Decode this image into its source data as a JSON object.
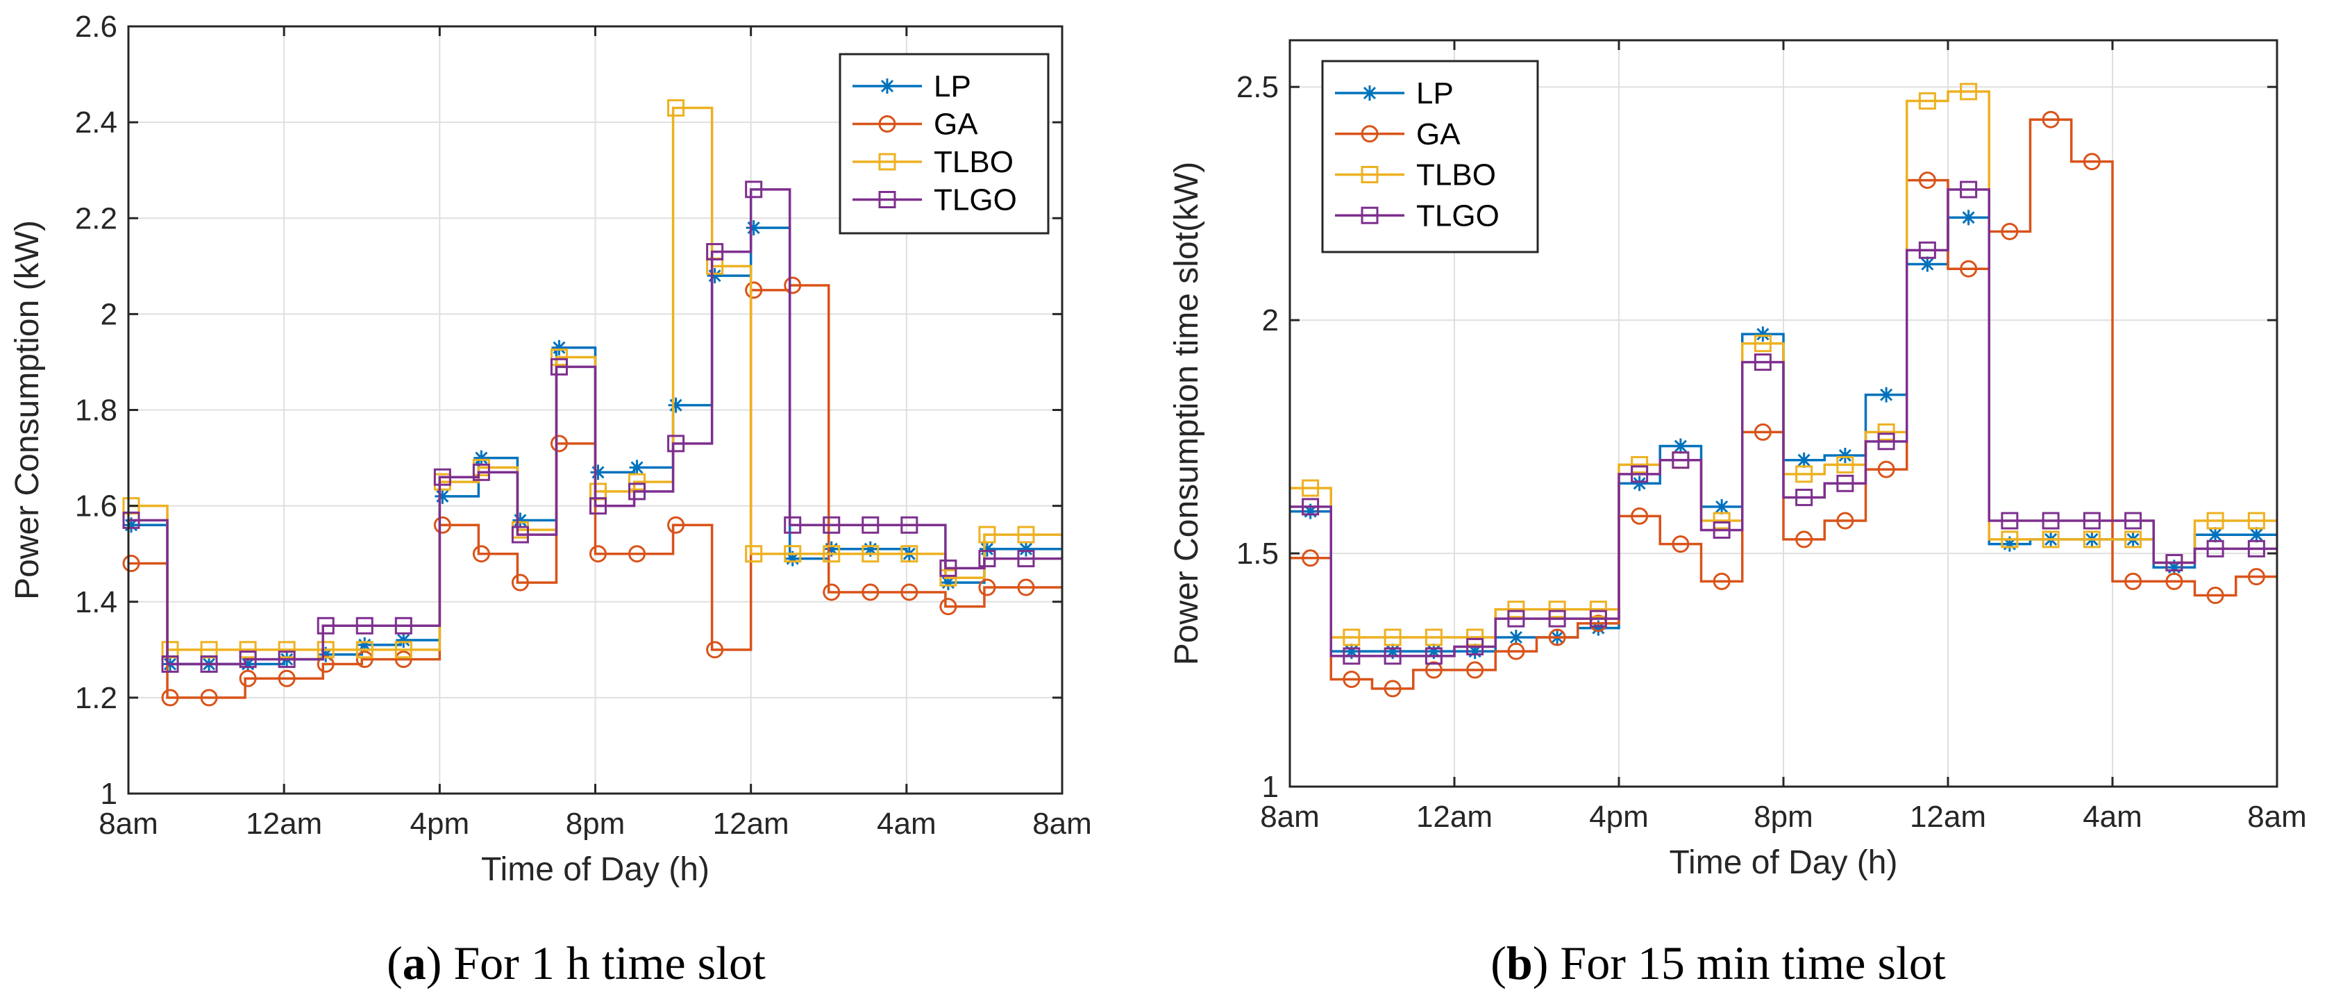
{
  "chart_data": [
    {
      "type": "line",
      "id": "a",
      "step": true,
      "caption_label": "a",
      "caption_text": "For 1 h time slot",
      "xlabel": "Time of Day (h)",
      "ylabel": "Power Consumption (kW)",
      "xlim": [
        0,
        24
      ],
      "ylim": [
        1,
        2.6
      ],
      "yticks": [
        1,
        1.2,
        1.4,
        1.6,
        1.8,
        2,
        2.2,
        2.4,
        2.6
      ],
      "ytick_labels": [
        "1",
        "1.2",
        "1.4",
        "1.6",
        "1.8",
        "2",
        "2.2",
        "2.4",
        "2.6"
      ],
      "xticks": [
        0,
        4,
        8,
        12,
        16,
        20,
        24
      ],
      "xtick_labels": [
        "8am",
        "12am",
        "4pm",
        "8pm",
        "12am",
        "4am",
        "8am"
      ],
      "grid": true,
      "legend": "top-right",
      "series": [
        {
          "name": "LP",
          "color": "#0072BD",
          "marker": "star",
          "values": [
            1.56,
            1.27,
            1.27,
            1.27,
            1.28,
            1.29,
            1.31,
            1.32,
            1.62,
            1.7,
            1.57,
            1.93,
            1.67,
            1.68,
            1.81,
            2.08,
            2.18,
            1.49,
            1.51,
            1.51,
            1.5,
            1.44,
            1.51,
            1.51
          ]
        },
        {
          "name": "GA",
          "color": "#D95319",
          "marker": "circle",
          "values": [
            1.48,
            1.2,
            1.2,
            1.24,
            1.24,
            1.27,
            1.28,
            1.28,
            1.56,
            1.5,
            1.44,
            1.73,
            1.5,
            1.5,
            1.56,
            1.3,
            2.05,
            2.06,
            1.42,
            1.42,
            1.42,
            1.39,
            1.43,
            1.43
          ]
        },
        {
          "name": "TLBO",
          "color": "#EDB120",
          "marker": "square",
          "values": [
            1.6,
            1.3,
            1.3,
            1.3,
            1.3,
            1.3,
            1.3,
            1.3,
            1.65,
            1.68,
            1.55,
            1.91,
            1.63,
            1.65,
            2.43,
            2.1,
            1.5,
            1.5,
            1.5,
            1.5,
            1.5,
            1.45,
            1.54,
            1.54
          ]
        },
        {
          "name": "TLGO",
          "color": "#7E2F8E",
          "marker": "square",
          "values": [
            1.57,
            1.27,
            1.27,
            1.28,
            1.28,
            1.35,
            1.35,
            1.35,
            1.66,
            1.67,
            1.54,
            1.89,
            1.6,
            1.63,
            1.73,
            2.13,
            2.26,
            1.56,
            1.56,
            1.56,
            1.56,
            1.47,
            1.49,
            1.49
          ]
        }
      ]
    },
    {
      "type": "line",
      "id": "b",
      "step": true,
      "caption_label": "b",
      "caption_text": "For 15 min time slot",
      "xlabel": "Time of Day (h)",
      "ylabel": "Power Consumption time slot(kW)",
      "xlim": [
        0,
        24
      ],
      "ylim": [
        1,
        2.6
      ],
      "yticks": [
        1,
        1.5,
        2,
        2.5
      ],
      "ytick_labels": [
        "1",
        "1.5",
        "2",
        "2.5"
      ],
      "xticks": [
        0,
        4,
        8,
        12,
        16,
        20,
        24
      ],
      "xtick_labels": [
        "8am",
        "12am",
        "4pm",
        "8pm",
        "12am",
        "4am",
        "8am"
      ],
      "grid": true,
      "legend": "top-left",
      "series": [
        {
          "name": "LP",
          "color": "#0072BD",
          "marker": "star",
          "values": [
            1.59,
            1.29,
            1.29,
            1.29,
            1.29,
            1.32,
            1.32,
            1.34,
            1.65,
            1.73,
            1.6,
            1.97,
            1.7,
            1.71,
            1.84,
            2.12,
            2.22,
            1.52,
            1.53,
            1.53,
            1.53,
            1.47,
            1.54,
            1.54
          ]
        },
        {
          "name": "GA",
          "color": "#D95319",
          "marker": "circle",
          "values": [
            1.49,
            1.23,
            1.21,
            1.25,
            1.25,
            1.29,
            1.32,
            1.35,
            1.58,
            1.52,
            1.44,
            1.76,
            1.53,
            1.57,
            1.68,
            2.3,
            2.11,
            2.19,
            2.43,
            2.34,
            1.44,
            1.44,
            1.41,
            1.45
          ]
        },
        {
          "name": "TLBO",
          "color": "#EDB120",
          "marker": "square",
          "values": [
            1.64,
            1.32,
            1.32,
            1.32,
            1.32,
            1.38,
            1.38,
            1.38,
            1.69,
            1.7,
            1.57,
            1.95,
            1.67,
            1.69,
            1.76,
            2.47,
            2.49,
            1.53,
            1.53,
            1.53,
            1.53,
            1.48,
            1.57,
            1.57
          ]
        },
        {
          "name": "TLGO",
          "color": "#7E2F8E",
          "marker": "square",
          "values": [
            1.6,
            1.28,
            1.28,
            1.28,
            1.3,
            1.36,
            1.36,
            1.36,
            1.67,
            1.7,
            1.55,
            1.91,
            1.62,
            1.65,
            1.74,
            2.15,
            2.28,
            1.57,
            1.57,
            1.57,
            1.57,
            1.48,
            1.51,
            1.51
          ]
        }
      ]
    }
  ]
}
